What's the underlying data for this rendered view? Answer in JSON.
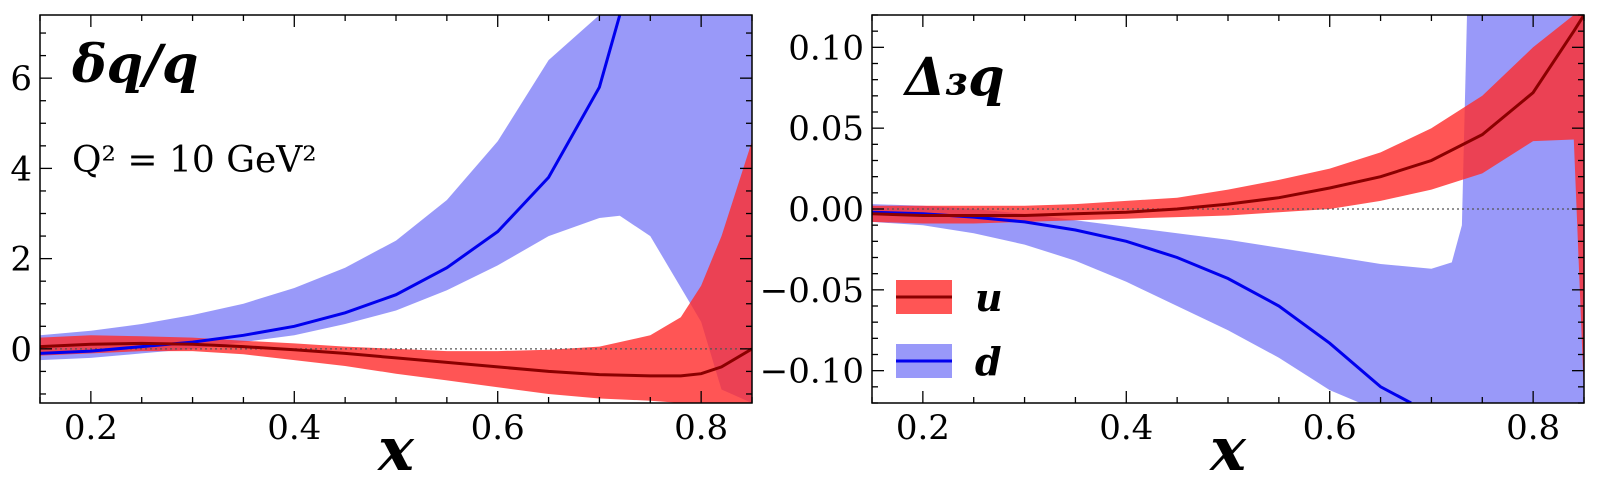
{
  "chart_data": [
    {
      "type": "line",
      "title": "δq/q",
      "annotation": "Q² = 10 GeV²",
      "xlabel": "x",
      "ylabel": "",
      "xlim": [
        0.15,
        0.85
      ],
      "ylim": [
        -1.2,
        7.4
      ],
      "xticks": [
        0.2,
        0.4,
        0.6,
        0.8
      ],
      "xtick_labels": [
        "0.2",
        "0.4",
        "0.6",
        "0.8"
      ],
      "yticks": [
        0,
        2,
        4,
        6
      ],
      "ytick_labels": [
        "0",
        "2",
        "4",
        "6"
      ],
      "reference_line": 0,
      "series": [
        {
          "name": "d",
          "color": "#0000ee",
          "band_color": "#6e6ef7",
          "x": [
            0.15,
            0.2,
            0.25,
            0.3,
            0.35,
            0.4,
            0.45,
            0.5,
            0.55,
            0.6,
            0.65,
            0.7,
            0.72
          ],
          "y": [
            -0.1,
            -0.05,
            0.05,
            0.15,
            0.3,
            0.5,
            0.8,
            1.2,
            1.8,
            2.6,
            3.8,
            5.8,
            7.4
          ],
          "band_x": [
            0.15,
            0.2,
            0.25,
            0.3,
            0.35,
            0.4,
            0.45,
            0.5,
            0.55,
            0.6,
            0.65,
            0.7,
            0.72,
            0.75,
            0.8,
            0.82,
            0.85
          ],
          "band_lower": [
            -0.25,
            -0.2,
            -0.1,
            0.0,
            0.15,
            0.3,
            0.55,
            0.85,
            1.3,
            1.85,
            2.5,
            2.9,
            2.95,
            2.5,
            0.6,
            -0.9,
            -1.2
          ],
          "band_upper": [
            0.3,
            0.4,
            0.55,
            0.75,
            1.0,
            1.35,
            1.8,
            2.4,
            3.3,
            4.6,
            6.4,
            7.4,
            7.4,
            7.4,
            7.4,
            7.4,
            7.4
          ]
        },
        {
          "name": "u",
          "color": "#8b0000",
          "band_color": "#ff2a2a",
          "x": [
            0.15,
            0.2,
            0.25,
            0.3,
            0.35,
            0.4,
            0.45,
            0.5,
            0.55,
            0.6,
            0.65,
            0.7,
            0.75,
            0.78,
            0.8,
            0.82,
            0.85
          ],
          "y": [
            0.05,
            0.1,
            0.12,
            0.1,
            0.05,
            -0.02,
            -0.1,
            -0.2,
            -0.3,
            -0.4,
            -0.5,
            -0.57,
            -0.6,
            -0.6,
            -0.55,
            -0.4,
            0.0
          ],
          "band_lower": [
            -0.15,
            -0.1,
            -0.05,
            -0.05,
            -0.12,
            -0.25,
            -0.38,
            -0.55,
            -0.7,
            -0.85,
            -1.0,
            -1.1,
            -1.15,
            -1.2,
            -1.2,
            -1.2,
            -1.2
          ],
          "band_upper": [
            0.25,
            0.3,
            0.28,
            0.25,
            0.18,
            0.12,
            0.05,
            0.0,
            -0.05,
            -0.05,
            -0.02,
            0.05,
            0.3,
            0.7,
            1.4,
            2.5,
            4.6
          ]
        }
      ]
    },
    {
      "type": "line",
      "title": "Δ₃q",
      "xlabel": "x",
      "ylabel": "",
      "xlim": [
        0.15,
        0.85
      ],
      "ylim": [
        -0.12,
        0.12
      ],
      "xticks": [
        0.2,
        0.4,
        0.6,
        0.8
      ],
      "xtick_labels": [
        "0.2",
        "0.4",
        "0.6",
        "0.8"
      ],
      "yticks": [
        -0.1,
        -0.05,
        0.0,
        0.05,
        0.1
      ],
      "ytick_labels": [
        "−0.10",
        "−0.05",
        "0.00",
        "0.05",
        "0.10"
      ],
      "reference_line": 0,
      "legend": {
        "position": "lower-left",
        "entries": [
          {
            "label": "u",
            "line_color": "#8b0000",
            "patch_color": "#ff2a2a"
          },
          {
            "label": "d",
            "line_color": "#0000ee",
            "patch_color": "#6e6ef7"
          }
        ]
      },
      "series": [
        {
          "name": "d",
          "color": "#0000ee",
          "band_color": "#6e6ef7",
          "x": [
            0.15,
            0.2,
            0.25,
            0.3,
            0.35,
            0.4,
            0.45,
            0.5,
            0.55,
            0.6,
            0.65,
            0.68
          ],
          "y": [
            -0.002,
            -0.003,
            -0.005,
            -0.008,
            -0.013,
            -0.02,
            -0.03,
            -0.043,
            -0.06,
            -0.083,
            -0.11,
            -0.12
          ],
          "band_x": [
            0.15,
            0.2,
            0.25,
            0.3,
            0.35,
            0.4,
            0.45,
            0.5,
            0.55,
            0.6,
            0.63,
            0.65,
            0.7,
            0.72,
            0.73,
            0.735,
            0.74,
            0.8,
            0.85
          ],
          "band_lower": [
            -0.008,
            -0.01,
            -0.015,
            -0.022,
            -0.032,
            -0.045,
            -0.06,
            -0.075,
            -0.092,
            -0.112,
            -0.12,
            -0.12,
            -0.12,
            -0.12,
            -0.12,
            -0.12,
            -0.12,
            -0.12,
            -0.12
          ],
          "band_upper": [
            0.003,
            0.002,
            0.0,
            -0.003,
            -0.007,
            -0.011,
            -0.015,
            -0.019,
            -0.024,
            -0.029,
            -0.032,
            -0.034,
            -0.037,
            -0.033,
            -0.01,
            0.12,
            0.12,
            0.12,
            0.12
          ]
        },
        {
          "name": "u",
          "color": "#8b0000",
          "band_color": "#ff2a2a",
          "x": [
            0.15,
            0.2,
            0.25,
            0.3,
            0.35,
            0.4,
            0.45,
            0.5,
            0.55,
            0.6,
            0.65,
            0.7,
            0.75,
            0.8,
            0.84,
            0.85
          ],
          "y": [
            -0.003,
            -0.004,
            -0.004,
            -0.004,
            -0.003,
            -0.002,
            0.0,
            0.003,
            0.007,
            0.013,
            0.02,
            0.03,
            0.046,
            0.072,
            0.11,
            0.12
          ],
          "band_lower": [
            -0.008,
            -0.009,
            -0.009,
            -0.008,
            -0.007,
            -0.006,
            -0.005,
            -0.004,
            -0.002,
            0.0,
            0.005,
            0.012,
            0.022,
            0.042,
            0.043,
            -0.115
          ],
          "band_upper": [
            0.002,
            0.002,
            0.002,
            0.002,
            0.003,
            0.005,
            0.007,
            0.012,
            0.018,
            0.025,
            0.035,
            0.05,
            0.07,
            0.1,
            0.12,
            0.12
          ]
        }
      ]
    }
  ]
}
